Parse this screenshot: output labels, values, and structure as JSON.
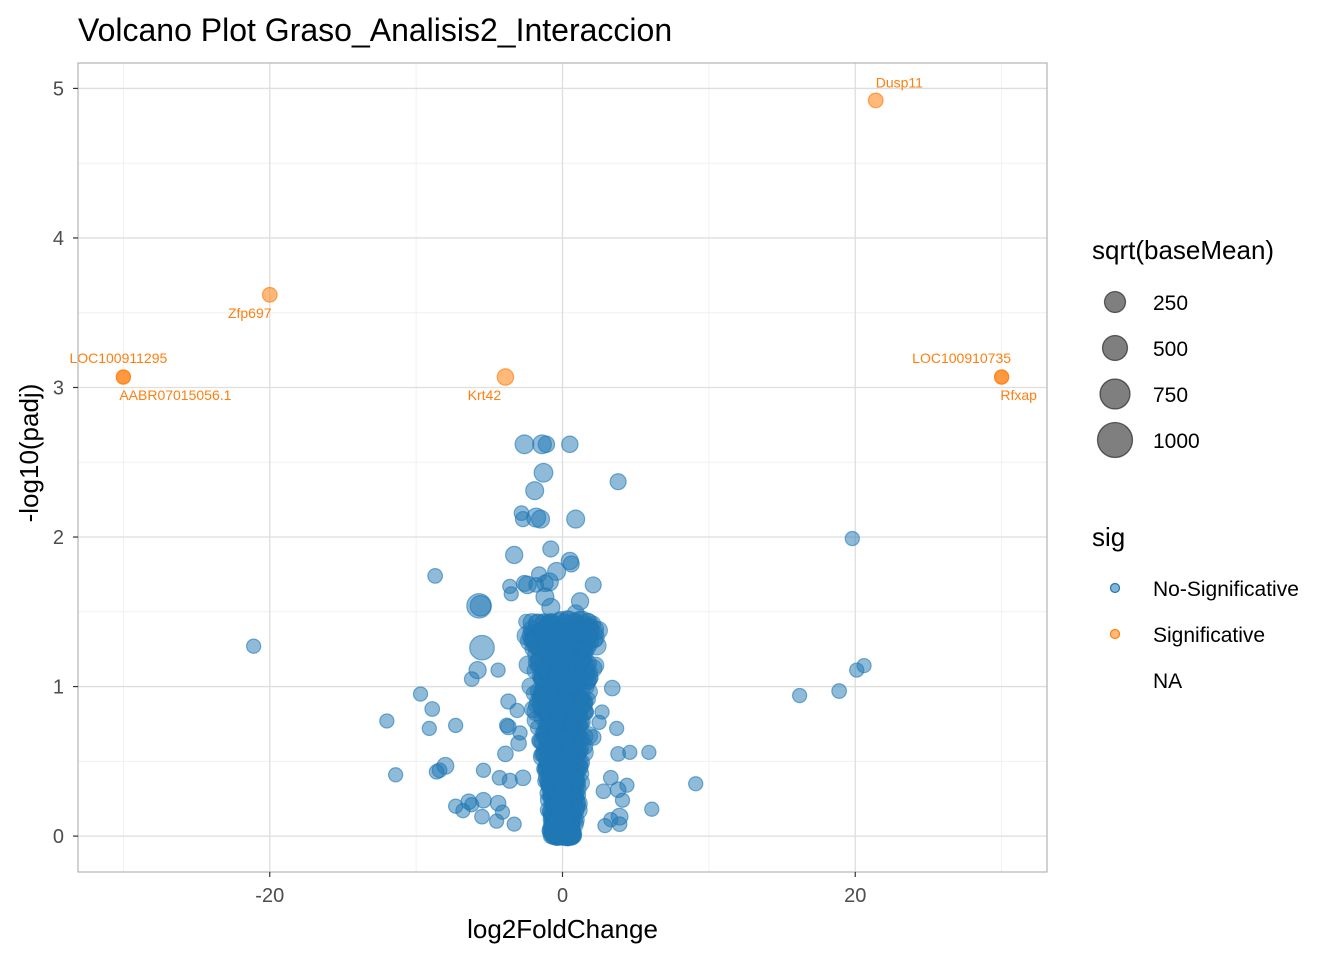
{
  "chart_data": {
    "type": "scatter",
    "title": "Volcano Plot Graso_Analisis2_Interaccion",
    "xlabel": "log2FoldChange",
    "ylabel": "-log10(padj)",
    "xlim": [
      -33.1,
      33.1
    ],
    "ylim": [
      -0.24,
      5.17
    ],
    "xticks": [
      -20,
      0,
      20
    ],
    "yticks": [
      0,
      1,
      2,
      3,
      4,
      5
    ],
    "grid": true,
    "colors": {
      "No-Significative": "#1f77b4",
      "Significative": "#ff7f0e"
    },
    "legend": {
      "size": {
        "title": "sqrt(baseMean)",
        "entries": [
          {
            "label": "250",
            "value": 250
          },
          {
            "label": "500",
            "value": 500
          },
          {
            "label": "750",
            "value": 750
          },
          {
            "label": "1000",
            "value": 1000
          }
        ]
      },
      "color": {
        "title": "sig",
        "entries": [
          {
            "label": "No-Significative",
            "color": "#1f77b4"
          },
          {
            "label": "Significative",
            "color": "#ff7f0e"
          },
          {
            "label": "NA",
            "color": ""
          }
        ]
      },
      "placement": "right"
    },
    "significant_points": [
      {
        "gene": "Dusp11",
        "x": 21.4,
        "y": 4.92,
        "size": 120
      },
      {
        "gene": "Zfp697",
        "x": -20.0,
        "y": 3.62,
        "size": 120
      },
      {
        "gene": "LOC100911295",
        "x": -30.0,
        "y": 3.07,
        "size": 110
      },
      {
        "gene": "AABR07015056.1",
        "x": -30.0,
        "y": 3.07,
        "size": 110
      },
      {
        "gene": "Krt42",
        "x": -3.9,
        "y": 3.07,
        "size": 160
      },
      {
        "gene": "LOC100910735",
        "x": 30.0,
        "y": 3.07,
        "size": 110
      },
      {
        "gene": "Rfxap",
        "x": 30.0,
        "y": 3.07,
        "size": 110
      }
    ],
    "points": [
      {
        "x": -2.6,
        "y": 2.62,
        "size": 220
      },
      {
        "x": -1.4,
        "y": 2.62,
        "size": 220
      },
      {
        "x": -1.1,
        "y": 2.62,
        "size": 160
      },
      {
        "x": 0.5,
        "y": 2.62,
        "size": 160
      },
      {
        "x": -1.3,
        "y": 2.43,
        "size": 220
      },
      {
        "x": 3.8,
        "y": 2.37,
        "size": 150
      },
      {
        "x": -1.9,
        "y": 2.31,
        "size": 200
      },
      {
        "x": -2.8,
        "y": 2.16,
        "size": 120
      },
      {
        "x": -2.7,
        "y": 2.12,
        "size": 130
      },
      {
        "x": -1.8,
        "y": 2.13,
        "size": 230
      },
      {
        "x": -1.5,
        "y": 2.12,
        "size": 200
      },
      {
        "x": 0.9,
        "y": 2.12,
        "size": 200
      },
      {
        "x": 19.8,
        "y": 1.99,
        "size": 110
      },
      {
        "x": -0.8,
        "y": 1.92,
        "size": 150
      },
      {
        "x": -3.3,
        "y": 1.88,
        "size": 180
      },
      {
        "x": 0.5,
        "y": 1.84,
        "size": 180
      },
      {
        "x": 0.6,
        "y": 1.82,
        "size": 150
      },
      {
        "x": -0.4,
        "y": 1.77,
        "size": 200
      },
      {
        "x": -8.7,
        "y": 1.74,
        "size": 120
      },
      {
        "x": -1.6,
        "y": 1.75,
        "size": 130
      },
      {
        "x": -2.6,
        "y": 1.69,
        "size": 150
      },
      {
        "x": -2.4,
        "y": 1.68,
        "size": 190
      },
      {
        "x": -1.8,
        "y": 1.68,
        "size": 120
      },
      {
        "x": -1.2,
        "y": 1.69,
        "size": 160
      },
      {
        "x": -0.9,
        "y": 1.7,
        "size": 200
      },
      {
        "x": 2.1,
        "y": 1.68,
        "size": 150
      },
      {
        "x": -3.6,
        "y": 1.67,
        "size": 110
      },
      {
        "x": -3.5,
        "y": 1.62,
        "size": 110
      },
      {
        "x": -1.2,
        "y": 1.6,
        "size": 200
      },
      {
        "x": 1.2,
        "y": 1.57,
        "size": 180
      },
      {
        "x": -5.7,
        "y": 1.54,
        "size": 420
      },
      {
        "x": -5.6,
        "y": 1.54,
        "size": 280
      },
      {
        "x": -0.8,
        "y": 1.53,
        "size": 200
      },
      {
        "x": 0.9,
        "y": 1.49,
        "size": 170
      },
      {
        "x": -2.1,
        "y": 1.43,
        "size": 180
      },
      {
        "x": -1.7,
        "y": 1.42,
        "size": 200
      },
      {
        "x": -1.3,
        "y": 1.38,
        "size": 180
      },
      {
        "x": 1.1,
        "y": 1.38,
        "size": 180
      },
      {
        "x": 0.3,
        "y": 1.34,
        "size": 250
      },
      {
        "x": 1.8,
        "y": 1.34,
        "size": 160
      },
      {
        "x": -1.1,
        "y": 1.3,
        "size": 170
      },
      {
        "x": -5.5,
        "y": 1.26,
        "size": 420
      },
      {
        "x": -21.1,
        "y": 1.27,
        "size": 110
      },
      {
        "x": 1.5,
        "y": 1.25,
        "size": 180
      },
      {
        "x": 20.6,
        "y": 1.14,
        "size": 110
      },
      {
        "x": 20.1,
        "y": 1.11,
        "size": 110
      },
      {
        "x": -5.8,
        "y": 1.11,
        "size": 180
      },
      {
        "x": -4.4,
        "y": 1.11,
        "size": 110
      },
      {
        "x": -6.2,
        "y": 1.05,
        "size": 120
      },
      {
        "x": 3.4,
        "y": 0.99,
        "size": 140
      },
      {
        "x": 18.9,
        "y": 0.97,
        "size": 120
      },
      {
        "x": 16.2,
        "y": 0.94,
        "size": 110
      },
      {
        "x": -9.7,
        "y": 0.95,
        "size": 110
      },
      {
        "x": -3.7,
        "y": 0.9,
        "size": 130
      },
      {
        "x": -8.9,
        "y": 0.85,
        "size": 120
      },
      {
        "x": -3.1,
        "y": 0.84,
        "size": 110
      },
      {
        "x": 2.7,
        "y": 0.83,
        "size": 110
      },
      {
        "x": -12.0,
        "y": 0.77,
        "size": 110
      },
      {
        "x": -7.3,
        "y": 0.74,
        "size": 110
      },
      {
        "x": 2.5,
        "y": 0.76,
        "size": 110
      },
      {
        "x": -3.7,
        "y": 0.73,
        "size": 140
      },
      {
        "x": -9.1,
        "y": 0.72,
        "size": 110
      },
      {
        "x": 3.7,
        "y": 0.72,
        "size": 110
      },
      {
        "x": -3.8,
        "y": 0.74,
        "size": 120
      },
      {
        "x": -2.9,
        "y": 0.69,
        "size": 110
      },
      {
        "x": 2.1,
        "y": 0.66,
        "size": 140
      },
      {
        "x": -3.0,
        "y": 0.62,
        "size": 140
      },
      {
        "x": 5.9,
        "y": 0.56,
        "size": 110
      },
      {
        "x": 3.8,
        "y": 0.55,
        "size": 120
      },
      {
        "x": 4.6,
        "y": 0.56,
        "size": 110
      },
      {
        "x": -3.9,
        "y": 0.55,
        "size": 140
      },
      {
        "x": -8.0,
        "y": 0.47,
        "size": 170
      },
      {
        "x": -8.4,
        "y": 0.44,
        "size": 120
      },
      {
        "x": -8.6,
        "y": 0.43,
        "size": 120
      },
      {
        "x": -5.4,
        "y": 0.44,
        "size": 110
      },
      {
        "x": 9.1,
        "y": 0.35,
        "size": 110
      },
      {
        "x": -11.4,
        "y": 0.41,
        "size": 110
      },
      {
        "x": -4.3,
        "y": 0.39,
        "size": 120
      },
      {
        "x": -3.6,
        "y": 0.37,
        "size": 130
      },
      {
        "x": -2.7,
        "y": 0.39,
        "size": 140
      },
      {
        "x": 3.3,
        "y": 0.39,
        "size": 120
      },
      {
        "x": 4.4,
        "y": 0.34,
        "size": 110
      },
      {
        "x": 2.8,
        "y": 0.3,
        "size": 120
      },
      {
        "x": 3.8,
        "y": 0.31,
        "size": 140
      },
      {
        "x": -6.4,
        "y": 0.23,
        "size": 140
      },
      {
        "x": -5.4,
        "y": 0.24,
        "size": 140
      },
      {
        "x": -7.3,
        "y": 0.2,
        "size": 110
      },
      {
        "x": -6.2,
        "y": 0.21,
        "size": 110
      },
      {
        "x": -4.4,
        "y": 0.22,
        "size": 140
      },
      {
        "x": 4.1,
        "y": 0.24,
        "size": 110
      },
      {
        "x": 6.1,
        "y": 0.18,
        "size": 110
      },
      {
        "x": -6.8,
        "y": 0.17,
        "size": 110
      },
      {
        "x": -4.1,
        "y": 0.16,
        "size": 110
      },
      {
        "x": -5.5,
        "y": 0.13,
        "size": 120
      },
      {
        "x": -4.5,
        "y": 0.1,
        "size": 110
      },
      {
        "x": 3.9,
        "y": 0.13,
        "size": 170
      },
      {
        "x": 3.3,
        "y": 0.11,
        "size": 110
      },
      {
        "x": 3.9,
        "y": 0.08,
        "size": 120
      },
      {
        "x": -3.3,
        "y": 0.08,
        "size": 110
      },
      {
        "x": 2.9,
        "y": 0.07,
        "size": 110
      }
    ],
    "dense_cloud": {
      "x_range": [
        -2.6,
        2.6
      ],
      "y_range": [
        0.0,
        1.45
      ],
      "count": 1900
    }
  }
}
